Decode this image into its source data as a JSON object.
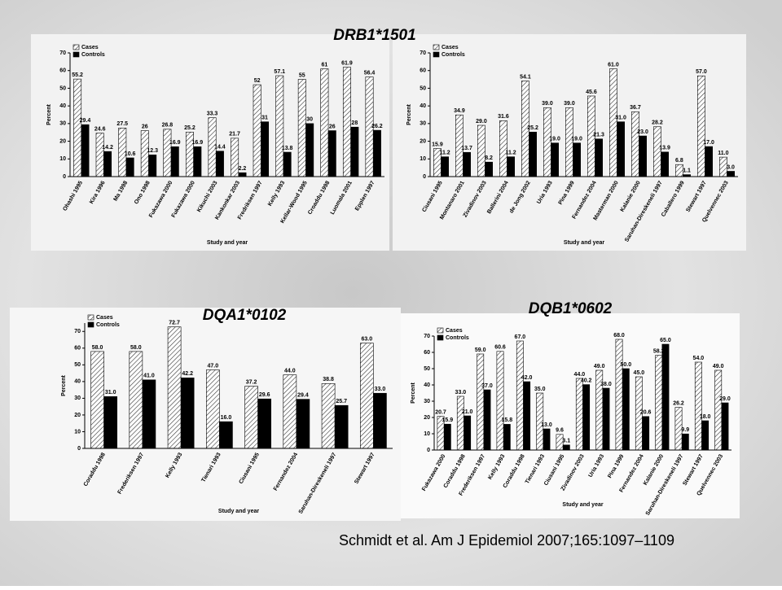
{
  "headings": [
    "DRB1*1501",
    "DQA1*0102",
    "DQB1*0602"
  ],
  "citation": "Schmidt et al. Am J Epidemiol 2007;165:1097–1109",
  "chart_data": [
    {
      "type": "bar",
      "x_label": "Study and year",
      "y_label": "Percent",
      "legend": "upper left",
      "categories": [
        "Ohashi 1995",
        "Kira 1996",
        "Ma 1998",
        "Ono 1998",
        "Fukazawa 2000",
        "Fukazawa 2000",
        "Kikuchi 2003",
        "Kankonkar 2003",
        "Fredriksen 1997",
        "Kelly 1993",
        "Kellar-Wood 1995",
        "Croaddu 1998",
        "Luomala 2001",
        "Epplen 1997"
      ],
      "series": [
        {
          "name": "Cases",
          "color": "hatch",
          "values": [
            55.2,
            24.6,
            27.5,
            26,
            26.8,
            25.2,
            33.3,
            21.7,
            52,
            57.1,
            55,
            61,
            61.9,
            56.4
          ]
        },
        {
          "name": "Controls",
          "color": "#000000",
          "values": [
            29.4,
            14.2,
            10.6,
            12.3,
            16.9,
            16.9,
            14.4,
            2.2,
            31,
            13.8,
            30,
            26,
            28,
            26.2
          ]
        }
      ],
      "ylim": [
        0,
        70
      ],
      "yticks": [
        0,
        10,
        20,
        30,
        40,
        50,
        60,
        70
      ]
    },
    {
      "type": "bar",
      "x_label": "Study and year",
      "y_label": "Percent",
      "legend": "upper left",
      "categories": [
        "Ciusani 1995",
        "Montanaro 2001",
        "Zivadinov 2003",
        "Ballerini 2004",
        "de Jong 2002",
        "Uria 1993",
        "Pina 1999",
        "Fernandez 2004",
        "Masterman 2000",
        "Kalanie 2000",
        "Saruhan-Direskeneli 1997",
        "Caballero 1999",
        "Stewart 1997",
        "Quelvennec 2003"
      ],
      "series": [
        {
          "name": "Cases",
          "color": "hatch",
          "values": [
            15.9,
            34.9,
            29.0,
            31.6,
            54.1,
            39.0,
            39.0,
            45.6,
            61.0,
            36.7,
            28.2,
            6.8,
            57.0,
            11.0
          ],
          "value_labels": [
            "15.9",
            "34.9",
            "29.0",
            "31.6",
            "54.1",
            "39.0",
            "39.0",
            "45.6",
            "61.0",
            "36.7",
            "28.2",
            "6.8",
            "57.0",
            "11.0"
          ]
        },
        {
          "name": "Controls",
          "color": "#000000",
          "values": [
            11.2,
            13.7,
            8.2,
            11.2,
            25.2,
            19.0,
            19.0,
            21.3,
            31.0,
            23.0,
            13.9,
            1.1,
            17.0,
            3.0
          ],
          "value_labels": [
            "11.2",
            "13.7",
            "8.2",
            "11.2",
            "25.2",
            "19.0",
            "19.0",
            "21.3",
            "31.0",
            "23.0",
            "13.9",
            "1.1",
            "17.0",
            "3.0"
          ]
        }
      ],
      "ylim": [
        0,
        70
      ],
      "yticks": [
        0,
        10,
        20,
        30,
        40,
        50,
        60,
        70
      ]
    },
    {
      "type": "bar",
      "x_label": "Study and year",
      "y_label": "Percent",
      "legend": "upper left",
      "categories": [
        "Coraddu 1998",
        "Frederiksen 1997",
        "Kelly 1993",
        "Tienari 1993",
        "Ciusani 1995",
        "Fernandez 2004",
        "Saruhan-Direskeneli 1997",
        "Stewart 1997"
      ],
      "series": [
        {
          "name": "Cases",
          "color": "hatch",
          "values": [
            58.0,
            58.0,
            72.7,
            47.0,
            37.2,
            44.0,
            38.8,
            63.0
          ],
          "value_labels": [
            "58.0",
            "58.0",
            "72.7",
            "47.0",
            "37.2",
            "44.0",
            "38.8",
            "63.0"
          ]
        },
        {
          "name": "Controls",
          "color": "#000000",
          "values": [
            31.0,
            41.0,
            42.2,
            16.0,
            29.6,
            29.4,
            25.7,
            33.0
          ],
          "value_labels": [
            "31.0",
            "41.0",
            "42.2",
            "16.0",
            "29.6",
            "29.4",
            "25.7",
            "33.0"
          ]
        }
      ],
      "ylim": [
        0,
        75
      ],
      "yticks": [
        0,
        10,
        20,
        30,
        40,
        50,
        60,
        70
      ]
    },
    {
      "type": "bar",
      "x_label": "Study and year",
      "y_label": "Percent",
      "legend": "upper left",
      "categories": [
        "Fukazawa 2000",
        "Coraddu 1998",
        "Frederiksen 1997",
        "Kelly 1993",
        "Coraddu 1998",
        "Tienari 1993",
        "Ciusani 1995",
        "Zivadinov 2003",
        "Uria 1993",
        "Pina 1999",
        "Fernandez 2004",
        "Kalanie 2000",
        "Saruhan-Direskeneli 1997",
        "Stewart 1997",
        "Quelvennec 2003"
      ],
      "series": [
        {
          "name": "Cases",
          "color": "hatch",
          "values": [
            20.7,
            33.0,
            59.0,
            60.6,
            67.0,
            35.0,
            9.6,
            44.0,
            49.0,
            68.0,
            45.0,
            58.2,
            26.2,
            54.0,
            49.0
          ],
          "value_labels": [
            "20.7",
            "33.0",
            "59.0",
            "60.6",
            "67.0",
            "35.0",
            "9.6",
            "44.0",
            "49.0",
            "68.0",
            "45.0",
            "58.2",
            "26.2",
            "54.0",
            "49.0"
          ]
        },
        {
          "name": "Controls",
          "color": "#000000",
          "values": [
            15.9,
            21.0,
            37.0,
            15.8,
            42.0,
            13.0,
            3.1,
            40.2,
            38.0,
            50.0,
            20.6,
            65.0,
            9.9,
            18.0,
            29.0
          ],
          "value_labels": [
            "15.9",
            "21.0",
            "37.0",
            "15.8",
            "42.0",
            "13.0",
            "3.1",
            "40.2",
            "38.0",
            "50.0",
            "20.6",
            "65.0",
            "9.9",
            "18.0",
            "29.0"
          ]
        }
      ],
      "ylim": [
        0,
        70
      ],
      "yticks": [
        0,
        10,
        20,
        30,
        40,
        50,
        60,
        70
      ]
    }
  ]
}
